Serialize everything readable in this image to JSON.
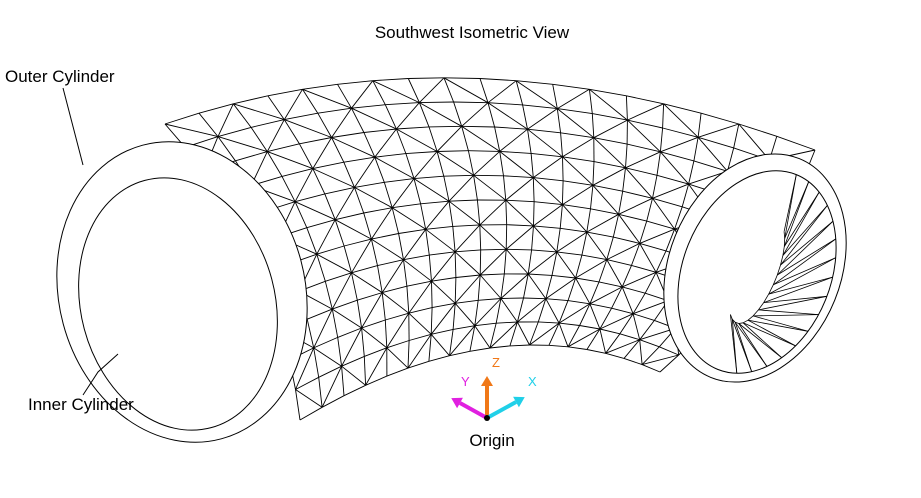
{
  "view_title": "Southwest Isometric View",
  "labels": {
    "outer_cylinder": "Outer Cylinder",
    "inner_cylinder": "Inner Cylinder",
    "origin": "Origin"
  },
  "axes": {
    "z": {
      "label": "Z",
      "color": "#f07818"
    },
    "y": {
      "label": "Y",
      "color": "#e020e0"
    },
    "x": {
      "label": "X",
      "color": "#20d0e8"
    }
  },
  "mesh": {
    "stroke_color": "#000000",
    "background": "#ffffff"
  }
}
